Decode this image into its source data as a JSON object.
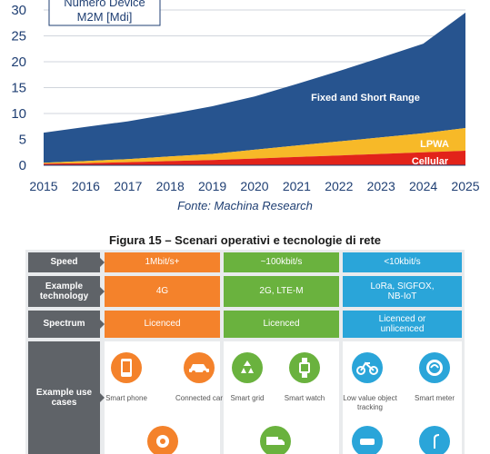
{
  "chart_data": {
    "type": "area",
    "title": "Numero Device M2M [Mdi]",
    "title_lines": [
      "Numero Device",
      "M2M [Mdi]"
    ],
    "x": [
      2015,
      2016,
      2017,
      2018,
      2019,
      2020,
      2021,
      2022,
      2023,
      2024,
      2025
    ],
    "xticks": [
      "2015",
      "2016",
      "2017",
      "2018",
      "2019",
      "2020",
      "2021",
      "2022",
      "2023",
      "2024",
      "2025"
    ],
    "yticks": [
      "0",
      "5",
      "10",
      "15",
      "20",
      "25",
      "30"
    ],
    "ylim": [
      0,
      30
    ],
    "stacked": true,
    "series": [
      {
        "name": "Cellular",
        "color": "#e2231a",
        "values": [
          0.3,
          0.4,
          0.6,
          0.8,
          1.0,
          1.3,
          1.6,
          1.9,
          2.2,
          2.5,
          2.8
        ]
      },
      {
        "name": "LPWA",
        "color": "#f7b928",
        "values": [
          0.2,
          0.4,
          0.6,
          0.9,
          1.2,
          1.7,
          2.2,
          2.7,
          3.2,
          3.7,
          4.4
        ]
      },
      {
        "name": "Fixed and Short Range",
        "color": "#27548f",
        "values": [
          5.8,
          6.6,
          7.3,
          8.2,
          9.2,
          10.3,
          11.9,
          13.6,
          15.4,
          17.3,
          22.3
        ]
      }
    ]
  },
  "caption": "Fonte: Machina Research",
  "figure_title": "Figura 15 – Scenari operativi e tecnologie di rete",
  "infographic": {
    "rows": [
      {
        "label": "Speed",
        "cells": [
          "1Mbit/s+",
          "~100kbit/s",
          "<10kbit/s"
        ]
      },
      {
        "label": "Example technology",
        "cells": [
          "4G",
          "2G, LTE-M",
          "LoRa, SIGFOX, NB-IoT"
        ]
      },
      {
        "label": "Spectrum",
        "cells": [
          "Licenced",
          "Licenced",
          "Licenced or unlicenced"
        ]
      }
    ],
    "use_cases_label": "Example use cases",
    "use_cases": [
      {
        "label": "Smart phone",
        "icon": "smartphone-icon"
      },
      {
        "label": "Connected car",
        "icon": "car-icon"
      },
      {
        "label": "Smart grid",
        "icon": "recycle-icon"
      },
      {
        "label": "Smart watch",
        "icon": "smartwatch-icon"
      },
      {
        "label": "Low value object tracking",
        "icon": "bicycle-icon"
      },
      {
        "label": "Smart meter",
        "icon": "meter-icon"
      }
    ],
    "colors": {
      "orange": "#f4822b",
      "green": "#6ab23e",
      "blue": "#2aa5d9",
      "gray": "#5f6368"
    }
  }
}
